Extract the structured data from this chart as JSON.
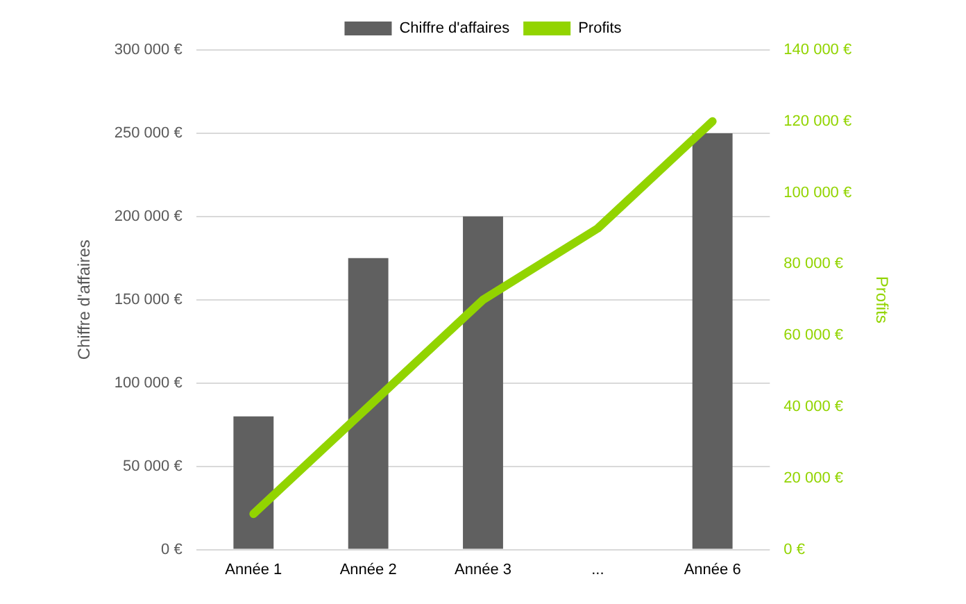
{
  "chart_data": {
    "type": "bar",
    "categories": [
      "Année 1",
      "Année 2",
      "Année 3",
      "...",
      "Année 6"
    ],
    "series": [
      {
        "name": "Chiffre d'affaires",
        "color": "#606060",
        "values": [
          80000,
          175000,
          200000,
          null,
          250000
        ]
      },
      {
        "name": "Profits",
        "type": "line",
        "axis": "y2",
        "color": "#92d400",
        "values": [
          10000,
          40000,
          70000,
          90000,
          120000
        ]
      }
    ],
    "ylabel": "Chiffre d'affaires",
    "y2label": "Profits",
    "ylim": [
      0,
      300000
    ],
    "yticks": [
      {
        "value": 0,
        "label": "0 €"
      },
      {
        "value": 50000,
        "label": "50 000 €"
      },
      {
        "value": 100000,
        "label": "100 000 €"
      },
      {
        "value": 150000,
        "label": "150 000 €"
      },
      {
        "value": 200000,
        "label": "200 000 €"
      },
      {
        "value": 250000,
        "label": "250 000 €"
      },
      {
        "value": 300000,
        "label": "300 000 €"
      }
    ],
    "y2lim": [
      0,
      140000
    ],
    "y2ticks": [
      {
        "value": 0,
        "label": "0 €"
      },
      {
        "value": 20000,
        "label": "20 000 €"
      },
      {
        "value": 40000,
        "label": "40 000 €"
      },
      {
        "value": 60000,
        "label": "60 000 €"
      },
      {
        "value": 80000,
        "label": "80 000 €"
      },
      {
        "value": 100000,
        "label": "100 000 €"
      },
      {
        "value": 120000,
        "label": "120 000 €"
      },
      {
        "value": 140000,
        "label": "140 000 €"
      }
    ],
    "grid": "y",
    "legend": "top",
    "marker": "none",
    "line_style": "solid"
  }
}
